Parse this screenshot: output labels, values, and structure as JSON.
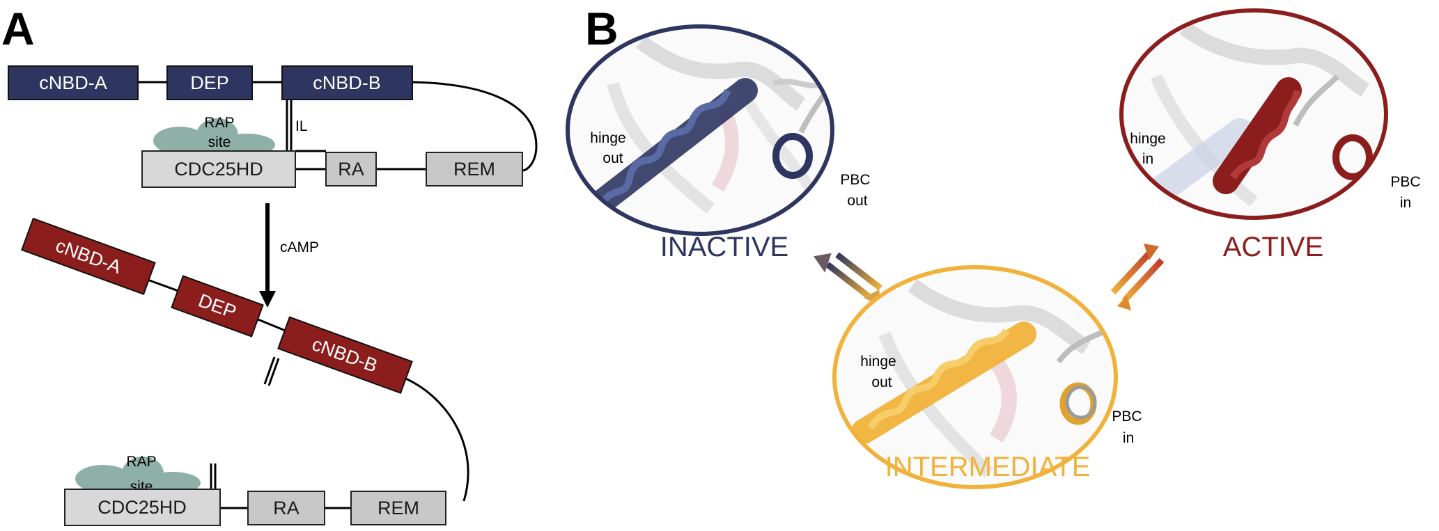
{
  "colors": {
    "inactive": "#2e3560",
    "active": "#8b1d1d",
    "intermediate": "#f0b23a",
    "gray_domain": "#c8c8c8",
    "rap_site": "#8fb0a7"
  },
  "panel_a": {
    "letter": "A",
    "top": {
      "cnbd_a": "cNBD-A",
      "dep": "DEP",
      "cnbd_b": "cNBD-B",
      "il": "IL",
      "rap_line1": "RAP",
      "rap_line2": "site",
      "cdc25hd": "CDC25HD",
      "ra": "RA",
      "rem": "REM"
    },
    "arrow_label": "cAMP",
    "bottom": {
      "cnbd_a": "cNBD-A",
      "dep": "DEP",
      "cnbd_b": "cNBD-B",
      "rap_line1": "RAP",
      "rap_line2": "site",
      "cdc25hd": "CDC25HD",
      "ra": "RA",
      "rem": "REM"
    }
  },
  "panel_b": {
    "letter": "B",
    "inactive": {
      "title": "INACTIVE",
      "hinge_line1": "hinge",
      "hinge_line2": "out",
      "pbc_line1": "PBC",
      "pbc_line2": "out"
    },
    "active": {
      "title": "ACTIVE",
      "hinge_line1": "hinge",
      "hinge_line2": "in",
      "pbc_line1": "PBC",
      "pbc_line2": "in"
    },
    "intermediate": {
      "title": "INTERMEDIATE",
      "hinge_line1": "hinge",
      "hinge_line2": "out",
      "pbc_line1": "PBC",
      "pbc_line2": "in"
    }
  }
}
